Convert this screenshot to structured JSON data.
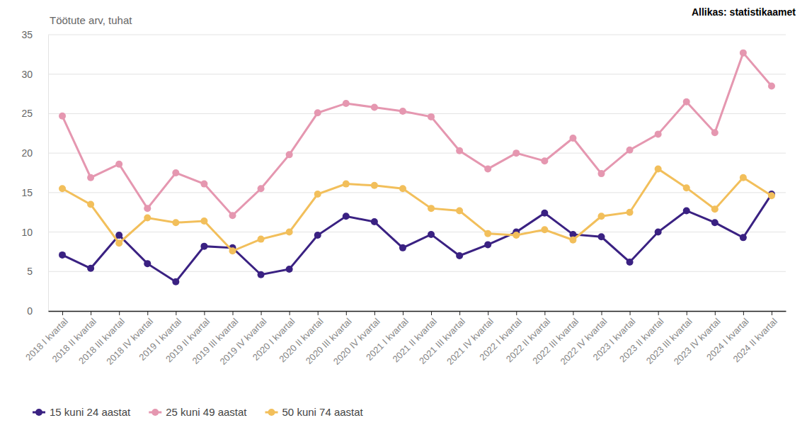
{
  "chart_data": {
    "type": "line",
    "y_label": "Töötute arv, tuhat",
    "source": "Allikas: statistikaamet",
    "categories": [
      "2018 I kvartal",
      "2018 II kvartal",
      "2018 III kvartal",
      "2018 IV kvartal",
      "2019 I kvartal",
      "2019 II kvartal",
      "2019 III kvartal",
      "2019 IV kvartal",
      "2020 I kvartal",
      "2020 II kvartal",
      "2020 III kvartal",
      "2020 IV kvartal",
      "2021 I kvartal",
      "2021 II kvartal",
      "2021 III kvartal",
      "2021 IV kvartal",
      "2022 I kvartal",
      "2022 II kvartal",
      "2022 III kvartal",
      "2022 IV kvartal",
      "2023 I kvartal",
      "2023 II kvartal",
      "2023 III kvartal",
      "2023 IV kvartal",
      "2024 I kvartal",
      "2024 II kvartal"
    ],
    "series": [
      {
        "name": "15 kuni 24 aastat",
        "color": "#3a2182",
        "values": [
          7.1,
          5.4,
          9.6,
          6.0,
          3.7,
          8.2,
          8.0,
          4.6,
          5.3,
          9.6,
          12.0,
          11.3,
          8.0,
          9.7,
          7.0,
          8.4,
          10.0,
          12.4,
          9.7,
          9.4,
          6.2,
          10.0,
          12.7,
          11.2,
          9.3,
          14.8
        ]
      },
      {
        "name": "25 kuni 49 aastat",
        "color": "#e597b0",
        "values": [
          24.7,
          16.9,
          18.6,
          13.0,
          17.5,
          16.1,
          12.1,
          15.5,
          19.8,
          25.1,
          26.3,
          25.8,
          25.3,
          24.6,
          20.3,
          18.0,
          20.0,
          19.0,
          21.9,
          17.4,
          20.4,
          22.4,
          26.5,
          22.6,
          32.7,
          28.5
        ]
      },
      {
        "name": "50 kuni 74 aastat",
        "color": "#f2bf5b",
        "values": [
          15.5,
          13.5,
          8.6,
          11.8,
          11.2,
          11.4,
          7.6,
          9.1,
          10.0,
          14.8,
          16.1,
          15.9,
          15.5,
          13.0,
          12.7,
          9.8,
          9.6,
          10.3,
          9.0,
          12.0,
          12.5,
          18.0,
          15.6,
          12.9,
          16.9,
          14.6
        ]
      }
    ],
    "ylim": [
      0,
      35
    ],
    "yticks": [
      0,
      5,
      10,
      15,
      20,
      25,
      30,
      35
    ],
    "grid": true,
    "legend": "bottom-left",
    "marker": "circle",
    "line_style": "solid"
  }
}
